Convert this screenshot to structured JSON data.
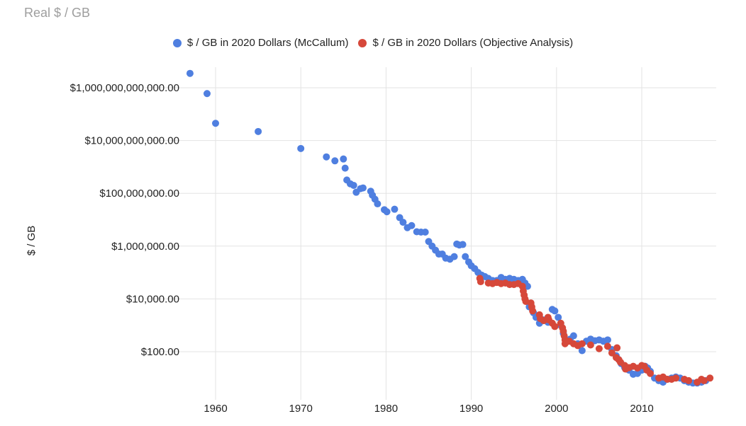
{
  "title": "Real $ / GB",
  "legend": [
    {
      "name": "$ / GB in 2020 Dollars (McCallum)",
      "color": "#4f7fe0"
    },
    {
      "name": "$ / GB in 2020 Dollars (Objective Analysis)",
      "color": "#d6483a"
    }
  ],
  "chart_data": {
    "type": "scatter",
    "title": "Real $ / GB",
    "xlabel": "",
    "ylabel": "$ / GB",
    "yscale": "log",
    "xlim": [
      1955,
      2018
    ],
    "ylim": [
      7,
      5000000000000
    ],
    "grid": true,
    "legend_position": "top",
    "x_ticks": [
      1960,
      1970,
      1980,
      1990,
      2000,
      2010
    ],
    "y_ticks": [
      {
        "value": 1000000000000,
        "label": "$1,000,000,000,000.00"
      },
      {
        "value": 10000000000,
        "label": "$10,000,000,000.00"
      },
      {
        "value": 100000000,
        "label": "$100,000,000.00"
      },
      {
        "value": 1000000,
        "label": "$1,000,000.00"
      },
      {
        "value": 10000,
        "label": "$10,000.00"
      },
      {
        "value": 100,
        "label": "$100.00"
      }
    ],
    "series": [
      {
        "name": "$ / GB in 2020 Dollars (McCallum)",
        "color": "#4f7fe0",
        "points": [
          [
            1957,
            3500000000000.0
          ],
          [
            1959,
            600000000000.0
          ],
          [
            1960,
            45000000000.0
          ],
          [
            1965,
            22000000000.0
          ],
          [
            1970,
            5000000000.0
          ],
          [
            1973,
            2400000000.0
          ],
          [
            1974,
            1700000000.0
          ],
          [
            1975,
            2000000000.0
          ],
          [
            1975.2,
            900000000.0
          ],
          [
            1975.4,
            320000000.0
          ],
          [
            1975.8,
            230000000.0
          ],
          [
            1976.2,
            200000000.0
          ],
          [
            1976.5,
            110000000.0
          ],
          [
            1977,
            150000000.0
          ],
          [
            1977.3,
            160000000.0
          ],
          [
            1978.2,
            120000000.0
          ],
          [
            1978.4,
            85000000.0
          ],
          [
            1978.7,
            60000000.0
          ],
          [
            1979,
            40000000.0
          ],
          [
            1979.8,
            24000000.0
          ],
          [
            1980.1,
            20000000.0
          ],
          [
            1981,
            25000000.0
          ],
          [
            1981.6,
            12000000.0
          ],
          [
            1982,
            8000000.0
          ],
          [
            1982.5,
            5000000.0
          ],
          [
            1983,
            6000000.0
          ],
          [
            1983.6,
            3500000.0
          ],
          [
            1984.1,
            3400000.0
          ],
          [
            1984.6,
            3400000.0
          ],
          [
            1985,
            1500000.0
          ],
          [
            1985.4,
            1000000.0
          ],
          [
            1985.8,
            700000.0
          ],
          [
            1986.2,
            500000.0
          ],
          [
            1986.6,
            500000.0
          ],
          [
            1987,
            350000.0
          ],
          [
            1987.5,
            320000.0
          ],
          [
            1988,
            400000.0
          ],
          [
            1988.3,
            1200000.0
          ],
          [
            1988.6,
            1100000.0
          ],
          [
            1989,
            1150000.0
          ],
          [
            1989.3,
            400000.0
          ],
          [
            1989.7,
            250000.0
          ],
          [
            1990,
            180000.0
          ],
          [
            1990.4,
            140000.0
          ],
          [
            1990.8,
            100000.0
          ],
          [
            1991.2,
            80000.0
          ],
          [
            1991.6,
            70000.0
          ],
          [
            1992,
            60000.0
          ],
          [
            1992.5,
            50000.0
          ],
          [
            1993,
            50000.0
          ],
          [
            1993.5,
            65000.0
          ],
          [
            1994,
            55000.0
          ],
          [
            1994.5,
            60000.0
          ],
          [
            1995,
            55000.0
          ],
          [
            1995.5,
            50000.0
          ],
          [
            1996,
            55000.0
          ],
          [
            1996.3,
            40000.0
          ],
          [
            1996.6,
            30000.0
          ],
          [
            1996.8,
            5000.0
          ],
          [
            1997,
            5000.0
          ],
          [
            1997.3,
            3000.0
          ],
          [
            1997.6,
            2000.0
          ],
          [
            1998,
            1200.0
          ],
          [
            1998.5,
            1600.0
          ],
          [
            1999,
            1300.0
          ],
          [
            1999.5,
            4000.0
          ],
          [
            1999.8,
            3500.0
          ],
          [
            2000.2,
            2000.0
          ],
          [
            2000.5,
            1000.0
          ],
          [
            2000.8,
            500.0
          ],
          [
            2001.2,
            250.0
          ],
          [
            2001.6,
            300.0
          ],
          [
            2002,
            400.0
          ],
          [
            2002.5,
            200.0
          ],
          [
            2003,
            110.0
          ],
          [
            2003.5,
            250.0
          ],
          [
            2004,
            300.0
          ],
          [
            2004.5,
            260.0
          ],
          [
            2005,
            280.0
          ],
          [
            2005.5,
            250.0
          ],
          [
            2006,
            280.0
          ],
          [
            2006.5,
            120.0
          ],
          [
            2007,
            70.0
          ],
          [
            2007.3,
            50.0
          ],
          [
            2007.6,
            35.0
          ],
          [
            2008,
            25.0
          ],
          [
            2008.5,
            20.0
          ],
          [
            2009,
            14.0
          ],
          [
            2009.5,
            15.0
          ],
          [
            2010,
            20.0
          ],
          [
            2010.4,
            28.0
          ],
          [
            2010.7,
            24.0
          ],
          [
            2011,
            18.0
          ],
          [
            2011.5,
            10.0
          ],
          [
            2012,
            8
          ],
          [
            2012.5,
            7
          ],
          [
            2013,
            9
          ],
          [
            2013.5,
            10.0
          ],
          [
            2014,
            11.0
          ],
          [
            2014.5,
            10.0
          ],
          [
            2015,
            8
          ],
          [
            2015.5,
            7
          ],
          [
            2016,
            6.5
          ],
          [
            2016.5,
            6.5
          ],
          [
            2017,
            7
          ],
          [
            2017.5,
            8
          ]
        ]
      },
      {
        "name": "$ / GB in 2020 Dollars (Objective Analysis)",
        "color": "#d6483a",
        "points": [
          [
            1991,
            60000.0
          ],
          [
            1991.1,
            45000.0
          ],
          [
            1992,
            40000.0
          ],
          [
            1992.5,
            38000.0
          ],
          [
            1993,
            42000.0
          ],
          [
            1993.5,
            38000.0
          ],
          [
            1994,
            40000.0
          ],
          [
            1994.5,
            35000.0
          ],
          [
            1995,
            35000.0
          ],
          [
            1995.5,
            38000.0
          ],
          [
            1996,
            30000.0
          ],
          [
            1996.1,
            20000.0
          ],
          [
            1996.2,
            14000.0
          ],
          [
            1996.3,
            10000.0
          ],
          [
            1996.4,
            8000.0
          ],
          [
            1997,
            7000.0
          ],
          [
            1997.1,
            5000.0
          ],
          [
            1997.2,
            3500.0
          ],
          [
            1998,
            2500.0
          ],
          [
            1998.1,
            1800.0
          ],
          [
            1998.5,
            1500.0
          ],
          [
            1999,
            2000.0
          ],
          [
            1999.1,
            1600.0
          ],
          [
            1999.5,
            1200.0
          ],
          [
            1999.8,
            900.0
          ],
          [
            2000.5,
            1200.0
          ],
          [
            2000.7,
            800.0
          ],
          [
            2000.8,
            600.0
          ],
          [
            2000.9,
            400.0
          ],
          [
            2001,
            280.0
          ],
          [
            2001,
            200.0
          ],
          [
            2001.5,
            250.0
          ],
          [
            2002,
            200.0
          ],
          [
            2002.5,
            170.0
          ],
          [
            2003,
            200.0
          ],
          [
            2004,
            180.0
          ],
          [
            2005,
            130.0
          ],
          [
            2006,
            160.0
          ],
          [
            2006.5,
            90.0
          ],
          [
            2007,
            60.0
          ],
          [
            2007.1,
            140.0
          ],
          [
            2007.3,
            50.0
          ],
          [
            2007.5,
            40.0
          ],
          [
            2008,
            30.0
          ],
          [
            2008.1,
            22.0
          ],
          [
            2008.5,
            25.0
          ],
          [
            2009,
            28.0
          ],
          [
            2009.5,
            24.0
          ],
          [
            2010,
            30.0
          ],
          [
            2010.3,
            28.0
          ],
          [
            2010.6,
            20.0
          ],
          [
            2011,
            15.0
          ],
          [
            2012,
            10.0
          ],
          [
            2012.5,
            11.0
          ],
          [
            2013,
            9
          ],
          [
            2013.5,
            9
          ],
          [
            2014,
            10.0
          ],
          [
            2015,
            9
          ],
          [
            2015.5,
            8
          ],
          [
            2016.5,
            7
          ],
          [
            2017,
            9
          ],
          [
            2017.3,
            8
          ],
          [
            2018,
            10.0
          ]
        ]
      }
    ]
  }
}
